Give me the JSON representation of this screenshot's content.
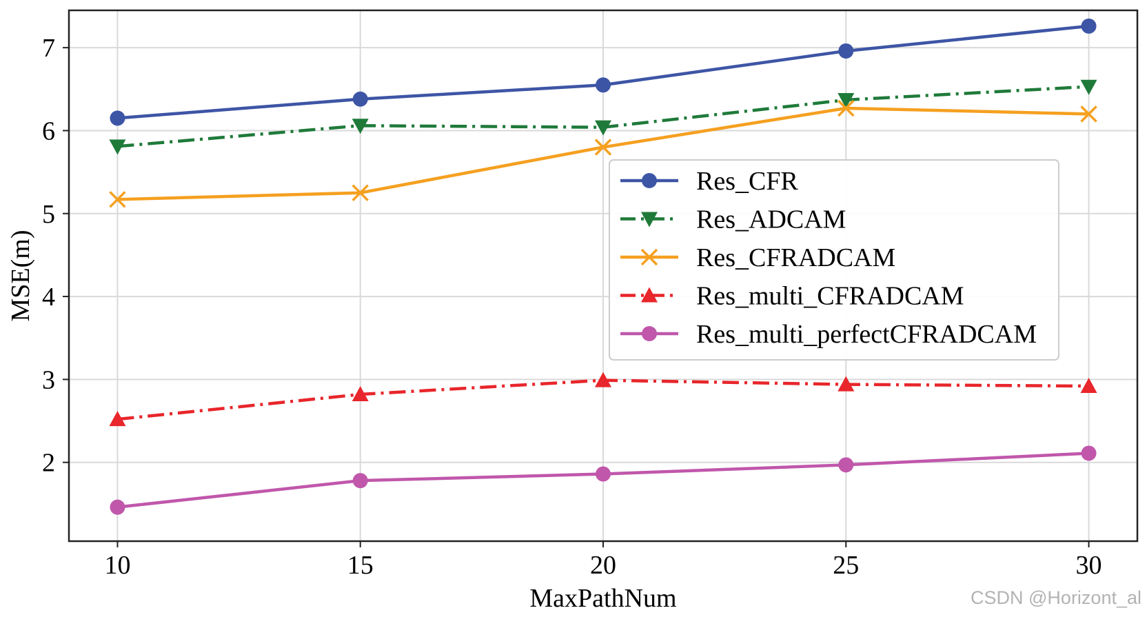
{
  "chart_data": {
    "type": "line",
    "xlabel": "MaxPathNum",
    "ylabel": "MSE(m)",
    "x": [
      10,
      15,
      20,
      25,
      30
    ],
    "xticks": [
      10,
      15,
      20,
      25,
      30
    ],
    "yticks": [
      2,
      3,
      4,
      5,
      6,
      7
    ],
    "xlim": [
      9,
      31
    ],
    "ylim": [
      1.05,
      7.45
    ],
    "grid": true,
    "legend_position": "center-right",
    "series": [
      {
        "name": "Res_CFR",
        "values": [
          6.15,
          6.38,
          6.55,
          6.96,
          7.26
        ],
        "color": "#3d55a5",
        "marker": "circle",
        "dash": "solid"
      },
      {
        "name": "Res_ADCAM",
        "values": [
          5.81,
          6.06,
          6.04,
          6.37,
          6.53
        ],
        "color": "#1f7a3a",
        "marker": "triangle-down",
        "dash": "dashdot"
      },
      {
        "name": "Res_CFRADCAM",
        "values": [
          5.17,
          5.25,
          5.8,
          6.27,
          6.2
        ],
        "color": "#f5a020",
        "marker": "x",
        "dash": "solid"
      },
      {
        "name": "Res_multi_CFRADCAM",
        "values": [
          2.52,
          2.82,
          2.99,
          2.94,
          2.92
        ],
        "color": "#e8262b",
        "marker": "triangle-up",
        "dash": "dashdot"
      },
      {
        "name": "Res_multi_perfectCFRADCAM",
        "values": [
          1.46,
          1.78,
          1.86,
          1.97,
          2.11
        ],
        "color": "#c057ab",
        "marker": "circle",
        "dash": "solid"
      }
    ]
  },
  "watermark": "CSDN @Horizont_al"
}
